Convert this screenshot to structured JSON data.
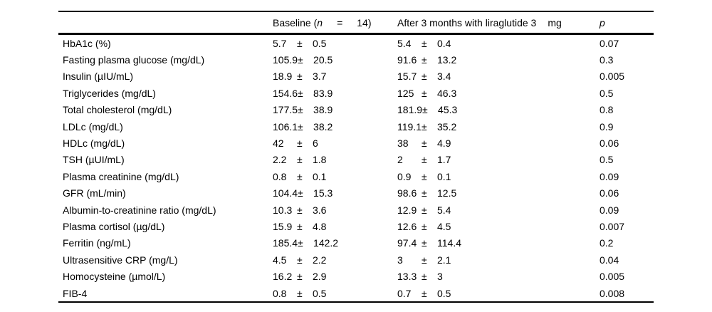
{
  "colors": {
    "background": "#ffffff",
    "text": "#000000",
    "rule": "#000000"
  },
  "table": {
    "pm": "±",
    "header": {
      "label": "",
      "baseline": {
        "prefix": "Baseline (",
        "n_italic": "n",
        "equals": "=",
        "count": "14)"
      },
      "after": {
        "text": "After 3 months with liraglutide 3",
        "unit": "mg"
      },
      "p_italic": "p"
    },
    "rows": [
      {
        "label": "HbA1c (%)",
        "baseline_mean": "5.7",
        "baseline_sd": "0.5",
        "after_mean": "5.4",
        "after_sd": "0.4",
        "p": "0.07"
      },
      {
        "label": "Fasting plasma glucose (mg/dL)",
        "baseline_mean": "105.9",
        "baseline_sd": "20.5",
        "after_mean": "91.6",
        "after_sd": "13.2",
        "p": "0.3"
      },
      {
        "label": "Insulin (µIU/mL)",
        "baseline_mean": "18.9",
        "baseline_sd": "3.7",
        "after_mean": "15.7",
        "after_sd": "3.4",
        "p": "0.005"
      },
      {
        "label": "Triglycerides (mg/dL)",
        "baseline_mean": "154.6",
        "baseline_sd": "83.9",
        "after_mean": "125",
        "after_sd": "46.3",
        "p": "0.5"
      },
      {
        "label": "Total cholesterol (mg/dL)",
        "baseline_mean": "177.5",
        "baseline_sd": "38.9",
        "after_mean": "181.9",
        "after_sd": "45.3",
        "p": "0.8"
      },
      {
        "label": "LDLc (mg/dL)",
        "baseline_mean": "106.1",
        "baseline_sd": "38.2",
        "after_mean": "119.1",
        "after_sd": "35.2",
        "p": "0.9"
      },
      {
        "label": "HDLc (mg/dL)",
        "baseline_mean": "42",
        "baseline_sd": "6",
        "after_mean": "38",
        "after_sd": "4.9",
        "p": "0.06"
      },
      {
        "label": "TSH (µUI/mL)",
        "baseline_mean": "2.2",
        "baseline_sd": "1.8",
        "after_mean": "2",
        "after_sd": "1.7",
        "p": "0.5"
      },
      {
        "label": "Plasma creatinine (mg/dL)",
        "baseline_mean": "0.8",
        "baseline_sd": "0.1",
        "after_mean": "0.9",
        "after_sd": "0.1",
        "p": "0.09"
      },
      {
        "label": "GFR (mL/min)",
        "baseline_mean": "104.4",
        "baseline_sd": "15.3",
        "after_mean": "98.6",
        "after_sd": "12.5",
        "p": "0.06"
      },
      {
        "label": "Albumin-to-creatinine ratio (mg/dL)",
        "baseline_mean": "10.3",
        "baseline_sd": "3.6",
        "after_mean": "12.9",
        "after_sd": "5.4",
        "p": "0.09"
      },
      {
        "label": "Plasma cortisol (µg/dL)",
        "baseline_mean": "15.9",
        "baseline_sd": "4.8",
        "after_mean": "12.6",
        "after_sd": "4.5",
        "p": "0.007"
      },
      {
        "label": "Ferritin (ng/mL)",
        "baseline_mean": "185.4",
        "baseline_sd": "142.2",
        "after_mean": "97.4",
        "after_sd": "114.4",
        "p": "0.2"
      },
      {
        "label": "Ultrasensitive CRP (mg/L)",
        "baseline_mean": "4.5",
        "baseline_sd": "2.2",
        "after_mean": "3",
        "after_sd": "2.1",
        "p": "0.04"
      },
      {
        "label": "Homocysteine (µmol/L)",
        "baseline_mean": "16.2",
        "baseline_sd": "2.9",
        "after_mean": "13.3",
        "after_sd": "3",
        "p": "0.005"
      },
      {
        "label": "FIB-4",
        "baseline_mean": "0.8",
        "baseline_sd": "0.5",
        "after_mean": "0.7",
        "after_sd": "0.5",
        "p": "0.008"
      }
    ]
  }
}
